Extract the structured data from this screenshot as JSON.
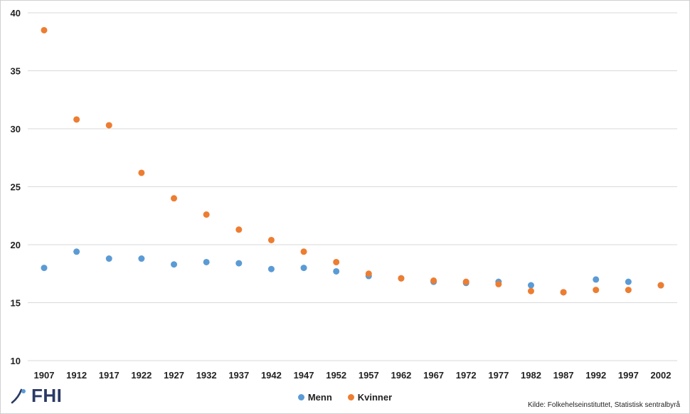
{
  "chart_data": {
    "type": "scatter",
    "categories": [
      "1907",
      "1912",
      "1917",
      "1922",
      "1927",
      "1932",
      "1937",
      "1942",
      "1947",
      "1952",
      "1957",
      "1962",
      "1967",
      "1972",
      "1977",
      "1982",
      "1987",
      "1992",
      "1997",
      "2002"
    ],
    "series": [
      {
        "name": "Menn",
        "color": "#5b9bd5",
        "values": [
          18.0,
          19.4,
          18.8,
          18.8,
          18.3,
          18.5,
          18.4,
          17.9,
          18.0,
          17.7,
          17.3,
          17.1,
          16.8,
          16.7,
          16.8,
          16.5,
          15.9,
          17.0,
          16.8,
          16.5
        ]
      },
      {
        "name": "Kvinner",
        "color": "#ed7d31",
        "values": [
          38.5,
          30.8,
          30.3,
          26.2,
          24.0,
          22.6,
          21.3,
          20.4,
          19.4,
          18.5,
          17.5,
          17.1,
          16.9,
          16.8,
          16.6,
          16.0,
          15.9,
          16.1,
          16.1,
          16.5
        ]
      }
    ],
    "ylim": [
      10,
      40
    ],
    "yticks": [
      10,
      15,
      20,
      25,
      30,
      35,
      40
    ],
    "grid": true,
    "legend_position": "bottom"
  },
  "source_text": "Kilde: Folkehelseinstituttet, Statistisk sentralbyrå",
  "logo": {
    "text": "FHI",
    "icon": "fhi-logo-icon"
  }
}
